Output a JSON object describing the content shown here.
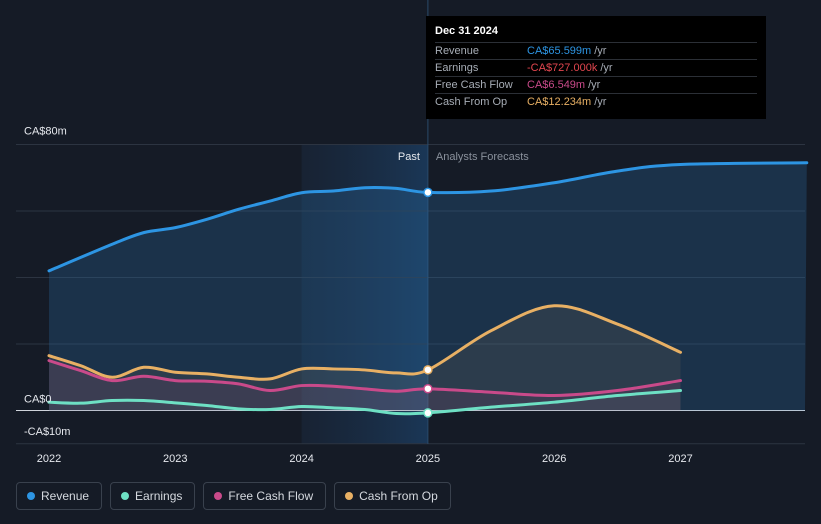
{
  "chart_data": {
    "type": "line",
    "x_ticks": [
      "2022",
      "2023",
      "2024",
      "2025",
      "2026",
      "2027"
    ],
    "y_ticks": [
      "CA$80m",
      "CA$0",
      "-CA$10m"
    ],
    "ylim": [
      -10,
      80
    ],
    "xlim": [
      2022,
      2028
    ],
    "divider_x": 2025,
    "past_label": "Past",
    "forecast_label": "Analysts Forecasts",
    "series": [
      {
        "name": "Revenue",
        "color": "#2d95e3",
        "points": [
          [
            2022,
            42
          ],
          [
            2022.5,
            50
          ],
          [
            2022.75,
            53.5
          ],
          [
            2023,
            55
          ],
          [
            2023.25,
            57.5
          ],
          [
            2023.5,
            60.5
          ],
          [
            2023.75,
            63
          ],
          [
            2024,
            65.5
          ],
          [
            2024.25,
            66
          ],
          [
            2024.5,
            67
          ],
          [
            2024.75,
            66.8
          ],
          [
            2025,
            65.6
          ],
          [
            2025.5,
            66
          ],
          [
            2026,
            68.5
          ],
          [
            2026.5,
            72
          ],
          [
            2027,
            74
          ],
          [
            2028,
            74.5
          ]
        ]
      },
      {
        "name": "Cash From Op",
        "color": "#e8b064",
        "points": [
          [
            2022,
            16.5
          ],
          [
            2022.25,
            13.5
          ],
          [
            2022.5,
            10
          ],
          [
            2022.75,
            13
          ],
          [
            2023,
            11.5
          ],
          [
            2023.25,
            11
          ],
          [
            2023.5,
            10
          ],
          [
            2023.75,
            9.5
          ],
          [
            2024,
            12.5
          ],
          [
            2024.25,
            12.5
          ],
          [
            2024.5,
            12.2
          ],
          [
            2024.75,
            11.3
          ],
          [
            2025,
            12.2
          ],
          [
            2025.5,
            24
          ],
          [
            2026,
            31.5
          ],
          [
            2026.5,
            26
          ],
          [
            2027,
            17.5
          ]
        ]
      },
      {
        "name": "Free Cash Flow",
        "color": "#c94a8a",
        "points": [
          [
            2022,
            15
          ],
          [
            2022.25,
            12
          ],
          [
            2022.5,
            9
          ],
          [
            2022.75,
            10.3
          ],
          [
            2023,
            9
          ],
          [
            2023.25,
            8.8
          ],
          [
            2023.5,
            8
          ],
          [
            2023.75,
            6
          ],
          [
            2024,
            7.5
          ],
          [
            2024.25,
            7.3
          ],
          [
            2024.5,
            6.5
          ],
          [
            2024.75,
            5.8
          ],
          [
            2025,
            6.5
          ],
          [
            2025.5,
            5.5
          ],
          [
            2026,
            4.5
          ],
          [
            2026.5,
            6
          ],
          [
            2027,
            9
          ]
        ]
      },
      {
        "name": "Earnings",
        "color": "#6ee0c4",
        "points": [
          [
            2022,
            2.5
          ],
          [
            2022.25,
            2.2
          ],
          [
            2022.5,
            3
          ],
          [
            2022.75,
            3
          ],
          [
            2023,
            2.3
          ],
          [
            2023.25,
            1.5
          ],
          [
            2023.5,
            0.5
          ],
          [
            2023.75,
            0.3
          ],
          [
            2024,
            1.2
          ],
          [
            2024.25,
            0.8
          ],
          [
            2024.5,
            0.3
          ],
          [
            2024.75,
            -0.9
          ],
          [
            2025,
            -0.7
          ],
          [
            2025.5,
            1
          ],
          [
            2026,
            2.5
          ],
          [
            2026.5,
            4.5
          ],
          [
            2027,
            6
          ]
        ]
      }
    ],
    "markers": [
      {
        "series": "Revenue",
        "x": 2025,
        "y": 65.599
      },
      {
        "series": "Cash From Op",
        "x": 2025,
        "y": 12.234
      },
      {
        "series": "Free Cash Flow",
        "x": 2025,
        "y": 6.549
      },
      {
        "series": "Earnings",
        "x": 2025,
        "y": -0.727
      }
    ]
  },
  "tooltip": {
    "date": "Dec 31 2024",
    "rows": [
      {
        "label": "Revenue",
        "value": "CA$65.599m",
        "unit": "/yr",
        "color": "#2d95e3"
      },
      {
        "label": "Earnings",
        "value": "-CA$727.000k",
        "unit": "/yr",
        "color": "#e2464f"
      },
      {
        "label": "Free Cash Flow",
        "value": "CA$6.549m",
        "unit": "/yr",
        "color": "#c94a8a"
      },
      {
        "label": "Cash From Op",
        "value": "CA$12.234m",
        "unit": "/yr",
        "color": "#e8b064"
      }
    ]
  },
  "legend": [
    {
      "label": "Revenue",
      "color": "#2d95e3"
    },
    {
      "label": "Earnings",
      "color": "#6ee0c4"
    },
    {
      "label": "Free Cash Flow",
      "color": "#c94a8a"
    },
    {
      "label": "Cash From Op",
      "color": "#e8b064"
    }
  ]
}
